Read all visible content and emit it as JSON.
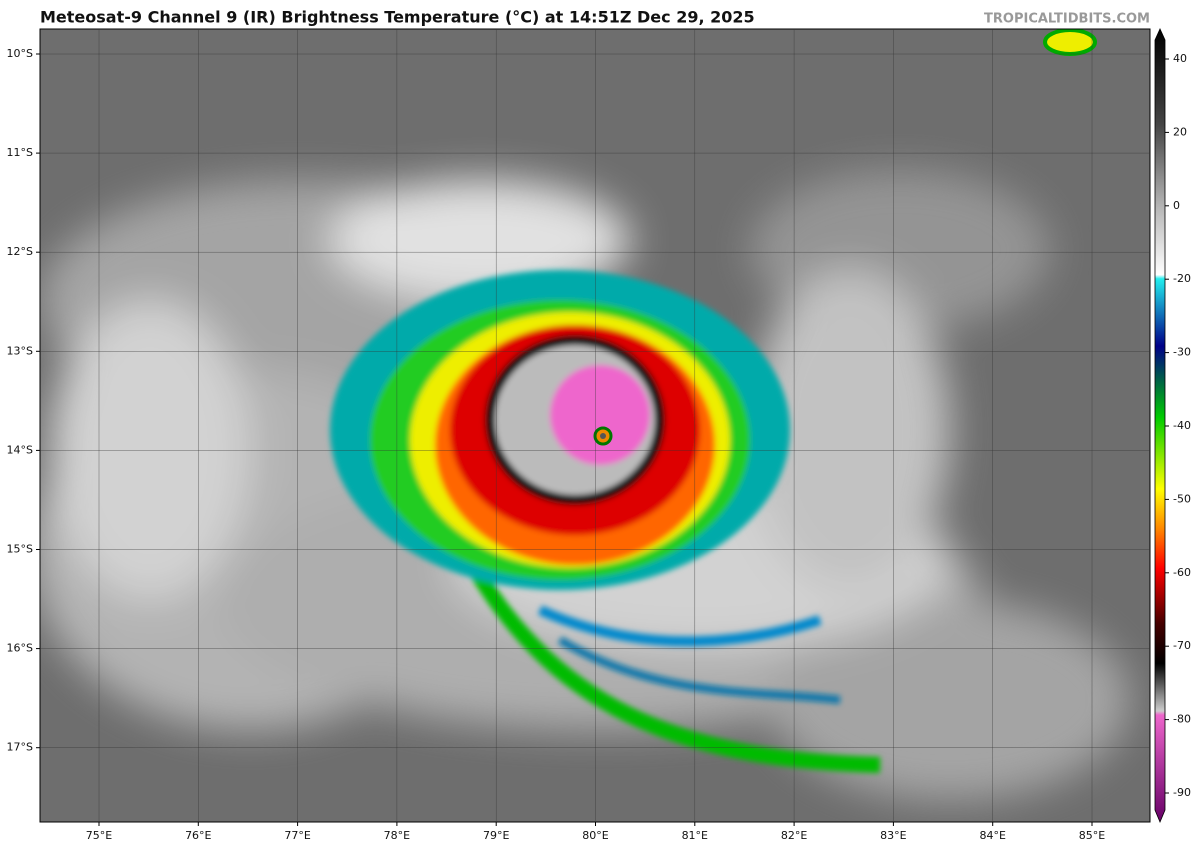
{
  "header": {
    "title": "Meteosat-9 Channel 9 (IR) Brightness Temperature (°C) at 14:51Z Dec 29, 2025",
    "watermark": "TROPICALTIDBITS.COM"
  },
  "map": {
    "lat_labels": [
      "10°S",
      "11°S",
      "12°S",
      "13°S",
      "14°S",
      "15°S",
      "16°S",
      "17°S"
    ],
    "lon_labels": [
      "75°E",
      "76°E",
      "77°E",
      "78°E",
      "79°E",
      "80°E",
      "81°E",
      "82°E",
      "83°E",
      "84°E",
      "85°E"
    ]
  },
  "colorbar": {
    "ticks": [
      40,
      20,
      0,
      -20,
      -30,
      -40,
      -50,
      -60,
      -70,
      -80,
      -90
    ]
  }
}
